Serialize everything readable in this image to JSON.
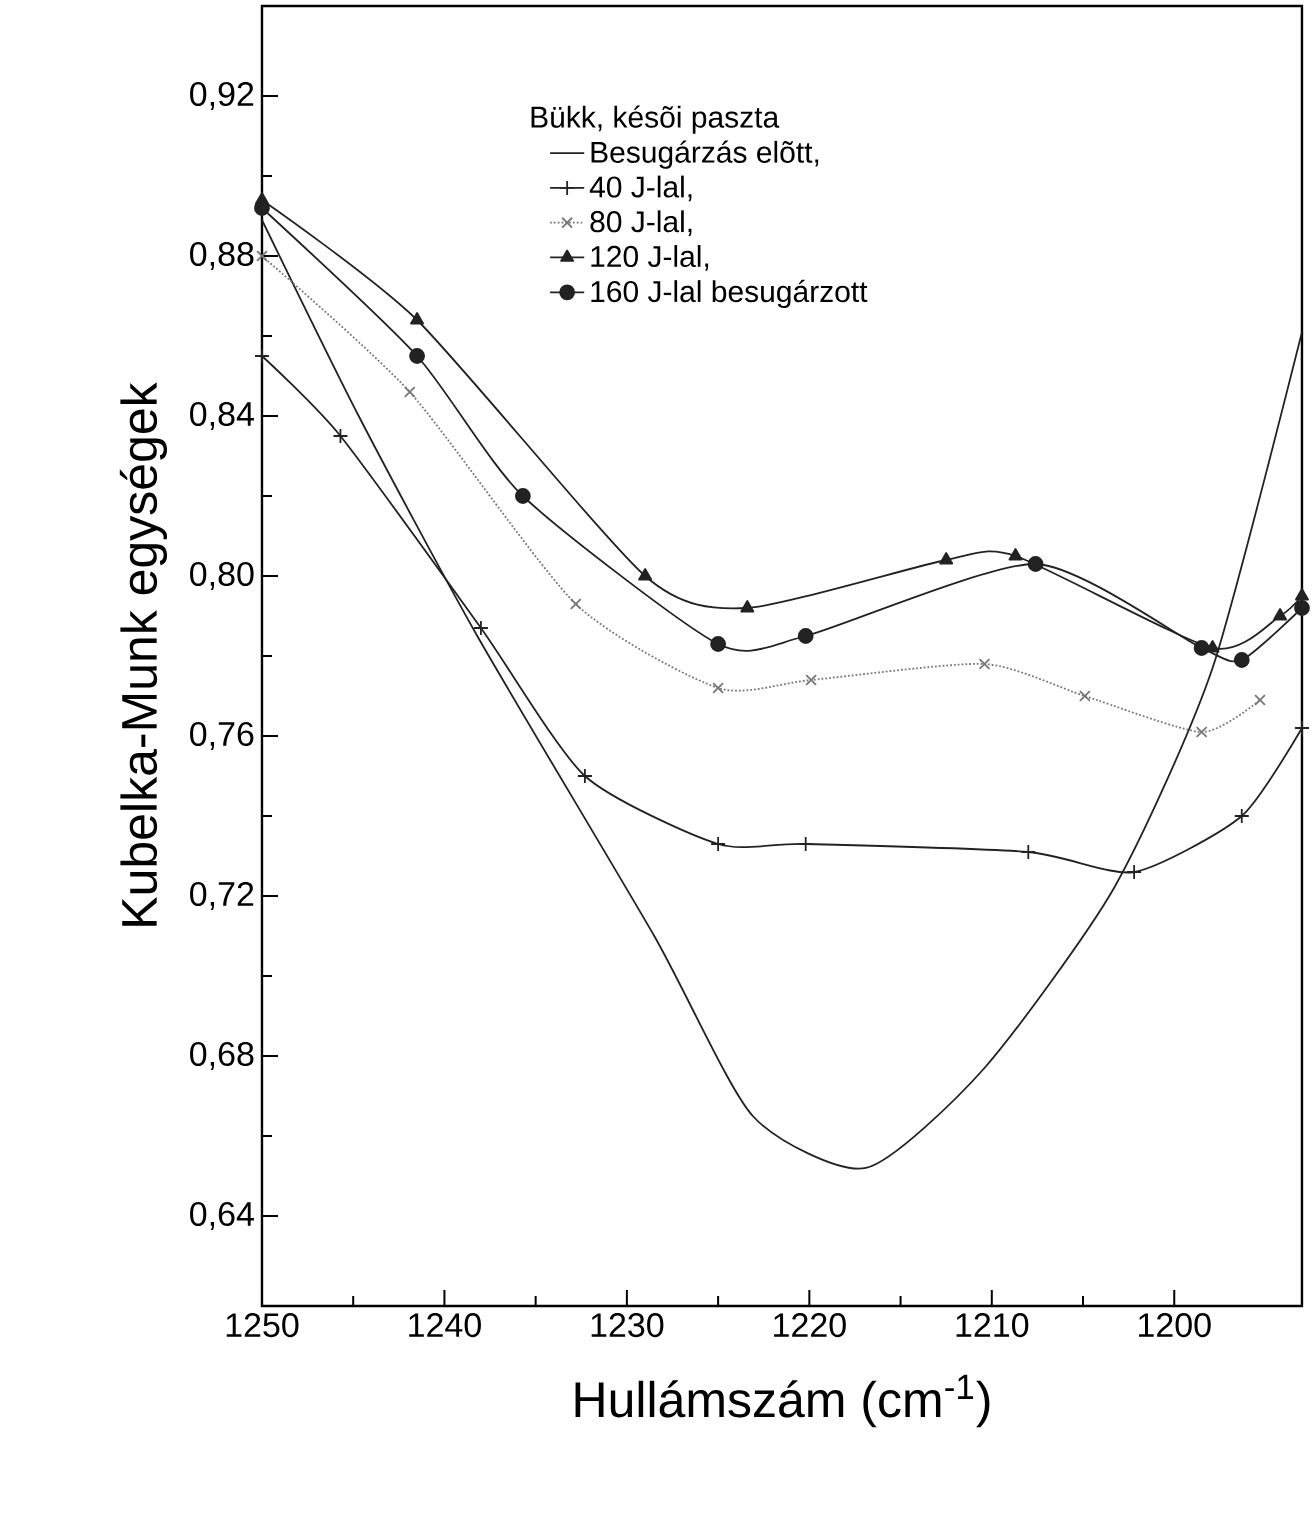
{
  "chart_data": {
    "type": "line",
    "legend_title": "Bükk, késõi paszta",
    "xlabel": "Hullámszám (cm$^{-1}$)",
    "ylabel": "Kubelka-Munk egységek",
    "xlim": [
      1250,
      1193
    ],
    "ylim": [
      0.6175,
      0.9425
    ],
    "xticks": [
      1250,
      1240,
      1230,
      1220,
      1210,
      1200
    ],
    "yticks": [
      {
        "value": 0.64,
        "label": "0,64"
      },
      {
        "value": 0.68,
        "label": "0,68"
      },
      {
        "value": 0.72,
        "label": "0,72"
      },
      {
        "value": 0.76,
        "label": "0,76"
      },
      {
        "value": 0.8,
        "label": "0,80"
      },
      {
        "value": 0.84,
        "label": "0,84"
      },
      {
        "value": 0.88,
        "label": "0,88"
      },
      {
        "value": 0.92,
        "label": "0,92"
      }
    ],
    "legend": "top",
    "grid": false,
    "series": [
      {
        "name": "Besugárzás elõtt,",
        "color": "#222222",
        "marker": "none",
        "line_style": "solid",
        "x": [
          1250,
          1244.7,
          1238.2,
          1228.5,
          1223.1,
          1216.9,
          1210.4,
          1203.3,
          1197.9,
          1193
        ],
        "values": [
          0.889,
          0.84,
          0.785,
          0.71,
          0.665,
          0.652,
          0.677,
          0.722,
          0.777,
          0.861
        ]
      },
      {
        "name": "40 J-lal,",
        "color": "#222222",
        "marker": "plus",
        "line_style": "solid",
        "x": [
          1250,
          1245.7,
          1238,
          1232.3,
          1225,
          1220.2,
          1208,
          1202.2,
          1196.3,
          1193
        ],
        "values": [
          0.855,
          0.835,
          0.787,
          0.75,
          0.733,
          0.733,
          0.731,
          0.726,
          0.74,
          0.762
        ]
      },
      {
        "name": "80 J-lal,",
        "color": "#777777",
        "marker": "cross",
        "line_style": "dotted",
        "x": [
          1250,
          1241.9,
          1232.8,
          1225,
          1219.9,
          1210.4,
          1204.9,
          1198.5,
          1195.3
        ],
        "values": [
          0.88,
          0.846,
          0.793,
          0.772,
          0.774,
          0.778,
          0.77,
          0.761,
          0.769
        ]
      },
      {
        "name": "120 J-lal,",
        "color": "#222222",
        "marker": "triangle",
        "line_style": "solid",
        "x": [
          1250,
          1241.5,
          1229,
          1223.4,
          1212.5,
          1208.7,
          1197.9,
          1194.2,
          1193
        ],
        "values": [
          0.894,
          0.864,
          0.8,
          0.792,
          0.804,
          0.805,
          0.782,
          0.79,
          0.795
        ]
      },
      {
        "name": "160 J-lal besugárzott",
        "color": "#222222",
        "marker": "circle",
        "line_style": "solid",
        "x": [
          1250,
          1241.5,
          1235.7,
          1225,
          1220.2,
          1207.6,
          1198.5,
          1196.3,
          1193
        ],
        "values": [
          0.892,
          0.855,
          0.82,
          0.783,
          0.785,
          0.803,
          0.782,
          0.779,
          0.792
        ]
      }
    ]
  }
}
